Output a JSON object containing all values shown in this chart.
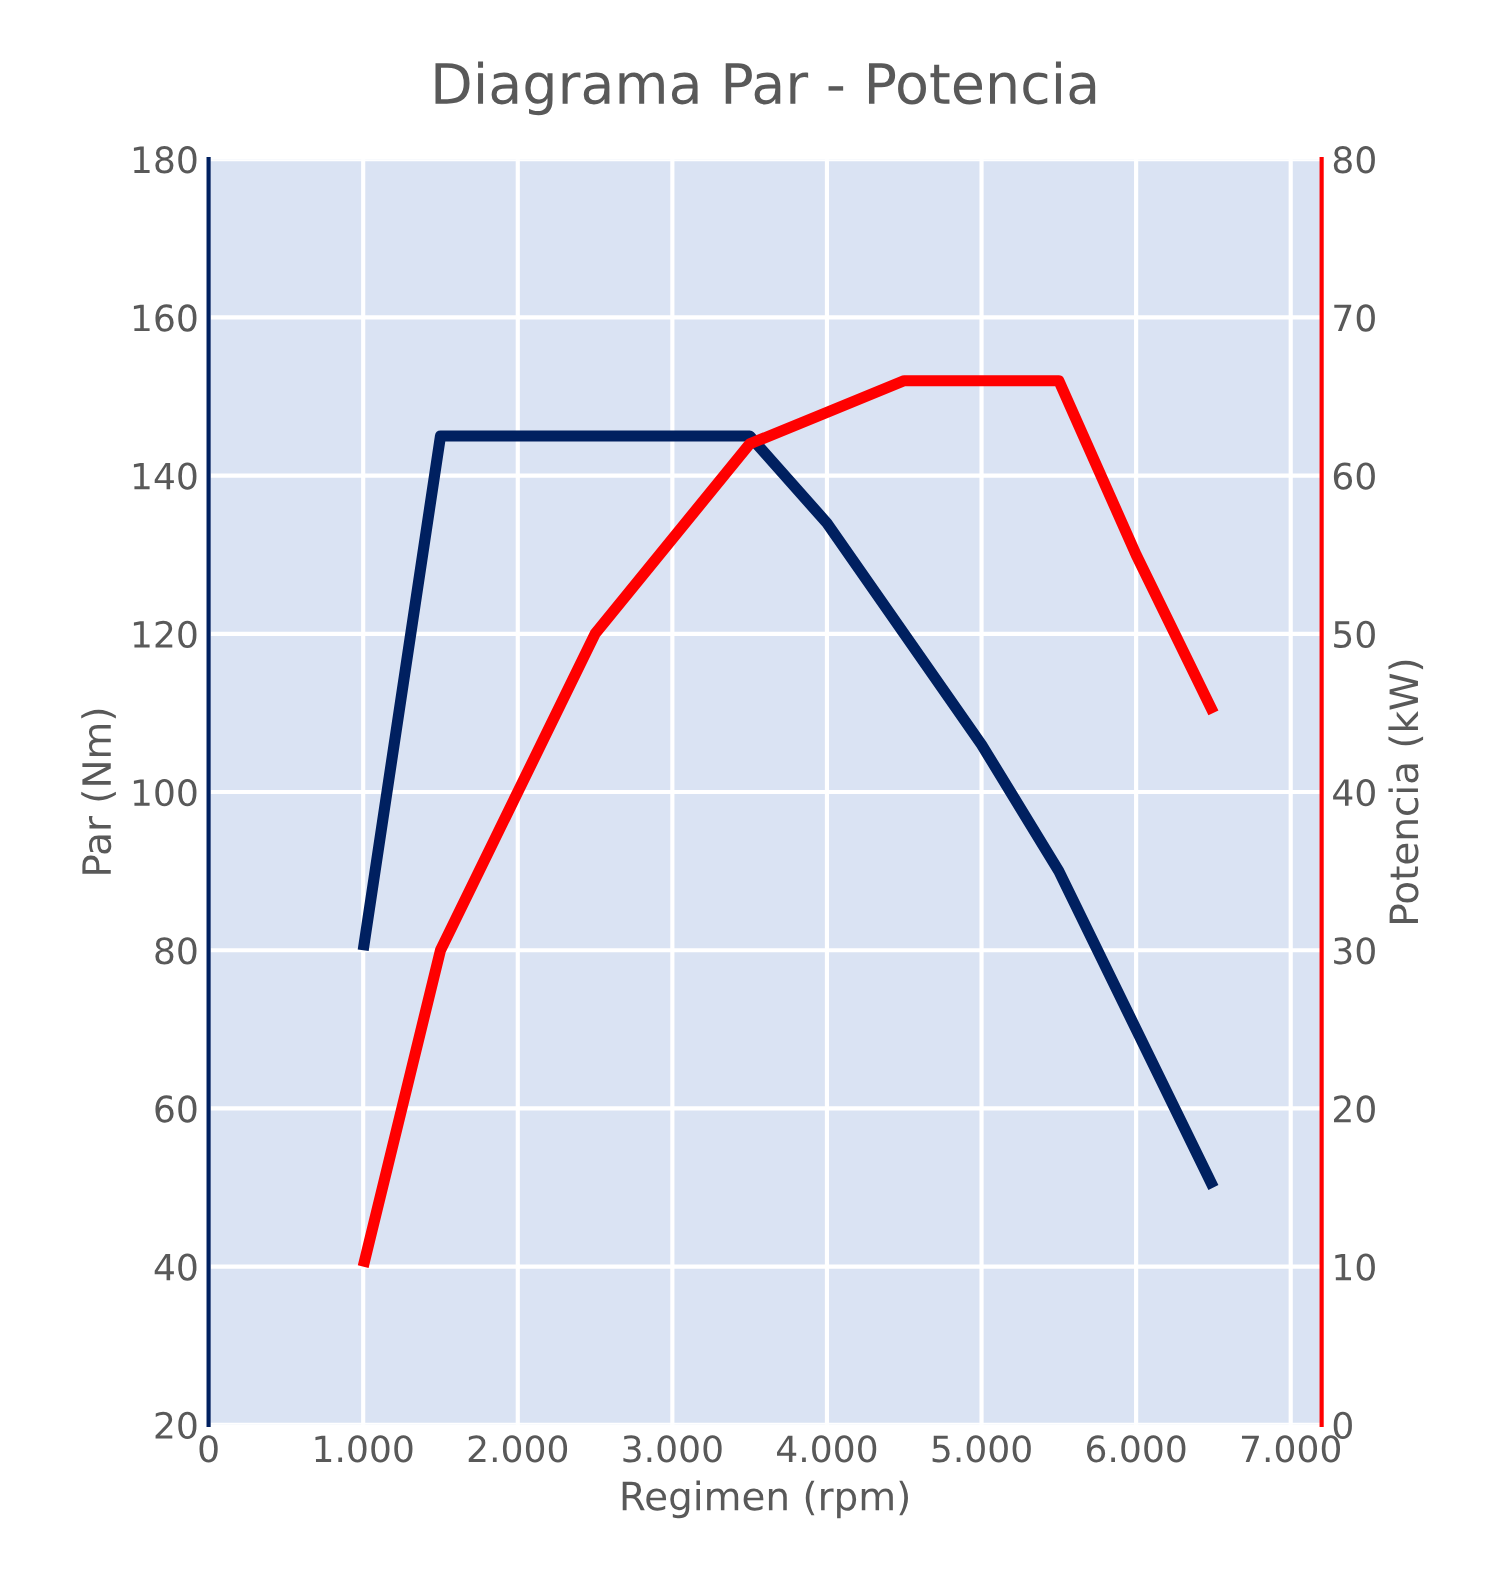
{
  "chart_data": {
    "type": "line",
    "title": "Diagrama Par - Potencia",
    "xlabel": "Regimen (rpm)",
    "ylabel": "Par (Nm)",
    "y2label": "Potencia (kW)",
    "xlim": [
      0,
      7200
    ],
    "xticks": [
      {
        "value": 0,
        "label": "0"
      },
      {
        "value": 1000,
        "label": "1.000"
      },
      {
        "value": 2000,
        "label": "2.000"
      },
      {
        "value": 3000,
        "label": "3.000"
      },
      {
        "value": 4000,
        "label": "4.000"
      },
      {
        "value": 5000,
        "label": "5.000"
      },
      {
        "value": 6000,
        "label": "6.000"
      },
      {
        "value": 7000,
        "label": "7.000"
      }
    ],
    "ylim": [
      20,
      180
    ],
    "yticks": [
      20,
      40,
      60,
      80,
      100,
      120,
      140,
      160,
      180
    ],
    "y2lim": [
      0,
      80
    ],
    "y2ticks": [
      0,
      10,
      20,
      30,
      40,
      50,
      60,
      70,
      80
    ],
    "grid": true,
    "legend": false,
    "marker": "none",
    "line_style": "solid",
    "series": [
      {
        "color": "#002060",
        "x": [
          1000,
          1500,
          3500,
          4000,
          4500,
          5000,
          5500,
          6500
        ],
        "values": [
          80,
          145,
          145,
          134,
          120,
          106,
          90,
          50
        ]
      },
      {
        "color": "#ff0000",
        "axis": "y2",
        "x": [
          1000,
          1500,
          2500,
          3500,
          4000,
          4500,
          5500,
          6000,
          6500
        ],
        "values": [
          10,
          30,
          50,
          62,
          64,
          66,
          66,
          55,
          45
        ]
      }
    ]
  }
}
